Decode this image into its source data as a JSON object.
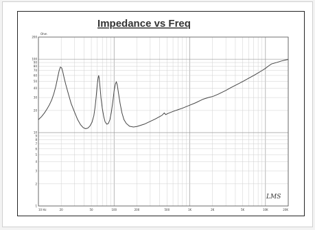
{
  "chart_data": {
    "type": "line",
    "title": "Impedance vs Freq",
    "y_unit": "Ohm",
    "watermark": "LMS",
    "x_scale": "log",
    "y_scale": "log",
    "xlim": [
      10,
      20000
    ],
    "ylim": [
      1,
      200
    ],
    "grid": true,
    "x_tick_labels": [
      {
        "value": 10,
        "label": "10 Hz"
      },
      {
        "value": 20,
        "label": "20"
      },
      {
        "value": 50,
        "label": "50"
      },
      {
        "value": 100,
        "label": "100"
      },
      {
        "value": 200,
        "label": "200"
      },
      {
        "value": 500,
        "label": "500"
      },
      {
        "value": 1000,
        "label": "1K"
      },
      {
        "value": 2000,
        "label": "2K"
      },
      {
        "value": 5000,
        "label": "5K"
      },
      {
        "value": 10000,
        "label": "10K"
      },
      {
        "value": 20000,
        "label": "20K"
      }
    ],
    "y_tick_labels": [
      {
        "value": 200,
        "label": "200"
      },
      {
        "value": 100,
        "label": "100"
      },
      {
        "value": 90,
        "label": "90"
      },
      {
        "value": 80,
        "label": "80"
      },
      {
        "value": 70,
        "label": "70"
      },
      {
        "value": 60,
        "label": "60"
      },
      {
        "value": 50,
        "label": "50"
      },
      {
        "value": 40,
        "label": "40"
      },
      {
        "value": 30,
        "label": "30"
      },
      {
        "value": 20,
        "label": "20"
      },
      {
        "value": 10,
        "label": "10"
      },
      {
        "value": 9,
        "label": "9"
      },
      {
        "value": 8,
        "label": "8"
      },
      {
        "value": 7,
        "label": "7"
      },
      {
        "value": 6,
        "label": "6"
      },
      {
        "value": 5,
        "label": "5"
      },
      {
        "value": 4,
        "label": "4"
      },
      {
        "value": 3,
        "label": "3"
      },
      {
        "value": 2,
        "label": "2"
      },
      {
        "value": 1,
        "label": "1"
      }
    ],
    "series": [
      {
        "color": "#444444",
        "points": [
          [
            10,
            15.0
          ],
          [
            11,
            16.5
          ],
          [
            12,
            18.5
          ],
          [
            13,
            21
          ],
          [
            14,
            24
          ],
          [
            15,
            28
          ],
          [
            16,
            34
          ],
          [
            17,
            43
          ],
          [
            18,
            57
          ],
          [
            18.8,
            70
          ],
          [
            19.5,
            78
          ],
          [
            20.3,
            76
          ],
          [
            21,
            67
          ],
          [
            22,
            54
          ],
          [
            23,
            45
          ],
          [
            25,
            33
          ],
          [
            27,
            25
          ],
          [
            30,
            19
          ],
          [
            33,
            15
          ],
          [
            36,
            12.8
          ],
          [
            39,
            11.7
          ],
          [
            42,
            11.3
          ],
          [
            45,
            11.5
          ],
          [
            48,
            12.3
          ],
          [
            51,
            13.8
          ],
          [
            54,
            17
          ],
          [
            56,
            22
          ],
          [
            58,
            31
          ],
          [
            60,
            46
          ],
          [
            61.5,
            56
          ],
          [
            62.5,
            60
          ],
          [
            63.5,
            55
          ],
          [
            65,
            43
          ],
          [
            67,
            30
          ],
          [
            70,
            21
          ],
          [
            73,
            16.5
          ],
          [
            76,
            14
          ],
          [
            80,
            13
          ],
          [
            84,
            13.3
          ],
          [
            88,
            15
          ],
          [
            92,
            19
          ],
          [
            96,
            26
          ],
          [
            100,
            37
          ],
          [
            104,
            46
          ],
          [
            107,
            49
          ],
          [
            110,
            45
          ],
          [
            114,
            35
          ],
          [
            120,
            25
          ],
          [
            127,
            18.5
          ],
          [
            135,
            15
          ],
          [
            145,
            13.3
          ],
          [
            160,
            12.2
          ],
          [
            180,
            11.9
          ],
          [
            200,
            12.1
          ],
          [
            250,
            13
          ],
          [
            300,
            14.2
          ],
          [
            350,
            15.3
          ],
          [
            400,
            16.5
          ],
          [
            430,
            17.2
          ],
          [
            460,
            18.5
          ],
          [
            480,
            17.6
          ],
          [
            520,
            18.3
          ],
          [
            600,
            19.4
          ],
          [
            700,
            20.5
          ],
          [
            800,
            21.5
          ],
          [
            1000,
            23.6
          ],
          [
            1200,
            25.5
          ],
          [
            1500,
            28.5
          ],
          [
            1800,
            30.2
          ],
          [
            2000,
            31
          ],
          [
            2100,
            31.6
          ],
          [
            2400,
            33.5
          ],
          [
            3000,
            37.5
          ],
          [
            3500,
            41
          ],
          [
            4000,
            44
          ],
          [
            5000,
            49.5
          ],
          [
            6000,
            55
          ],
          [
            7000,
            60
          ],
          [
            8000,
            65
          ],
          [
            9000,
            70
          ],
          [
            10000,
            75
          ],
          [
            11000,
            81
          ],
          [
            12000,
            86
          ],
          [
            14000,
            90
          ],
          [
            16000,
            94
          ],
          [
            18000,
            97
          ],
          [
            20000,
            99
          ]
        ]
      }
    ]
  }
}
